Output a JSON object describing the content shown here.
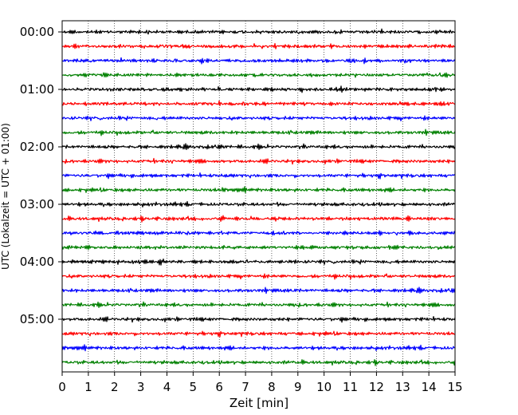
{
  "chart_data": {
    "type": "line",
    "title": "",
    "xlabel": "Zeit  [min]",
    "ylabel": "UTC (Lokalzeit = UTC + 01:00)",
    "xlim": [
      0,
      15
    ],
    "x_ticks": [
      "0",
      "1",
      "2",
      "3",
      "4",
      "5",
      "6",
      "7",
      "8",
      "9",
      "10",
      "11",
      "12",
      "13",
      "14",
      "15"
    ],
    "y_ticks": [
      "00:00",
      "01:00",
      "02:00",
      "03:00",
      "04:00",
      "05:00"
    ],
    "grid": "vertical dotted at each minute",
    "trace_interval_minutes": 15,
    "trace_count": 24,
    "colors_cycle": [
      "#000000",
      "#ff0000",
      "#0000ff",
      "#008000"
    ],
    "series": [
      {
        "start": "00:00",
        "color": "#000000"
      },
      {
        "start": "00:15",
        "color": "#ff0000"
      },
      {
        "start": "00:30",
        "color": "#0000ff"
      },
      {
        "start": "00:45",
        "color": "#008000"
      },
      {
        "start": "01:00",
        "color": "#000000"
      },
      {
        "start": "01:15",
        "color": "#ff0000"
      },
      {
        "start": "01:30",
        "color": "#0000ff"
      },
      {
        "start": "01:45",
        "color": "#008000"
      },
      {
        "start": "02:00",
        "color": "#000000"
      },
      {
        "start": "02:15",
        "color": "#ff0000"
      },
      {
        "start": "02:30",
        "color": "#0000ff"
      },
      {
        "start": "02:45",
        "color": "#008000"
      },
      {
        "start": "03:00",
        "color": "#000000"
      },
      {
        "start": "03:15",
        "color": "#ff0000"
      },
      {
        "start": "03:30",
        "color": "#0000ff"
      },
      {
        "start": "03:45",
        "color": "#008000"
      },
      {
        "start": "04:00",
        "color": "#000000"
      },
      {
        "start": "04:15",
        "color": "#ff0000"
      },
      {
        "start": "04:30",
        "color": "#0000ff"
      },
      {
        "start": "04:45",
        "color": "#008000"
      },
      {
        "start": "05:00",
        "color": "#000000"
      },
      {
        "start": "05:15",
        "color": "#ff0000"
      },
      {
        "start": "05:30",
        "color": "#0000ff"
      },
      {
        "start": "05:45",
        "color": "#008000"
      }
    ]
  }
}
